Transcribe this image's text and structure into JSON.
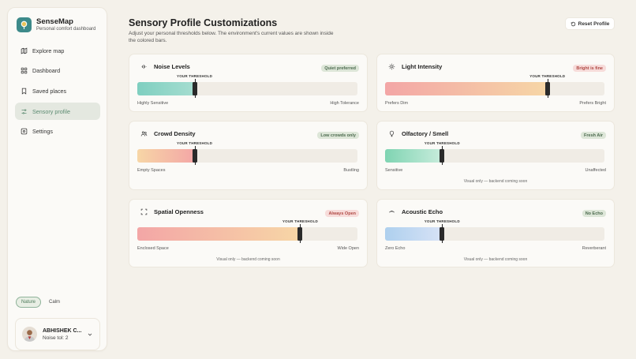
{
  "app": {
    "name": "SenseMap",
    "subtitle": "Personal comfort dashboard"
  },
  "sidebar": {
    "items": [
      {
        "label": "Explore map",
        "icon": "map-icon",
        "active": false
      },
      {
        "label": "Dashboard",
        "icon": "grid-icon",
        "active": false
      },
      {
        "label": "Saved places",
        "icon": "bookmark-icon",
        "active": false
      },
      {
        "label": "Sensory profile",
        "icon": "sliders-icon",
        "active": true
      },
      {
        "label": "Settings",
        "icon": "settings-icon",
        "active": false
      }
    ],
    "modes": [
      {
        "label": "Nature",
        "active": true
      },
      {
        "label": "Calm",
        "active": false
      }
    ],
    "user": {
      "name": "ABHISHEK C...",
      "detail": "Noise tol: 2"
    }
  },
  "header": {
    "title": "Sensory Profile Customizations",
    "subtitle": "Adjust your personal thresholds below. The environment's current values are shown inside the colored bars.",
    "reset_label": "Reset Profile"
  },
  "threshold_label": "YOUR THRESHOLD",
  "cards": [
    {
      "title": "Noise Levels",
      "icon": "audio-waves-icon",
      "badge": "Quiet preferred",
      "badge_tone": "green",
      "left_label": "Highly Sensitive",
      "right_label": "High Tolerance",
      "fill_level": 0.26,
      "threshold": 0.26,
      "fill_colors": [
        "#7fcfc0",
        "#a5ddd0"
      ],
      "note": ""
    },
    {
      "title": "Light Intensity",
      "icon": "sun-icon",
      "badge": "Bright is fine",
      "badge_tone": "red",
      "left_label": "Prefers Dim",
      "right_label": "Prefers Bright",
      "fill_level": 0.74,
      "threshold": 0.74,
      "fill_colors": [
        "#f3a6a6",
        "#f6d6a6"
      ],
      "note": ""
    },
    {
      "title": "Crowd Density",
      "icon": "users-icon",
      "badge": "Low crowds only",
      "badge_tone": "green",
      "left_label": "Empty Spaces",
      "right_label": "Bustling",
      "fill_level": 0.26,
      "threshold": 0.26,
      "fill_colors": [
        "#f7d6a6",
        "#f3a6a6"
      ],
      "note": ""
    },
    {
      "title": "Olfactory / Smell",
      "icon": "scent-icon",
      "badge": "Fresh Air",
      "badge_tone": "green",
      "left_label": "Sensitive",
      "right_label": "Unaffected",
      "fill_level": 0.26,
      "threshold": 0.26,
      "fill_colors": [
        "#7fd4b2",
        "#c8ecdc"
      ],
      "note": "Visual only — backend coming soon"
    },
    {
      "title": "Spatial Openness",
      "icon": "expand-icon",
      "badge": "Always Open",
      "badge_tone": "red",
      "left_label": "Enclosed Space",
      "right_label": "Wide Open",
      "fill_level": 0.74,
      "threshold": 0.74,
      "fill_colors": [
        "#f3a6a6",
        "#f7d6a6"
      ],
      "note": "Visual only — backend coming soon"
    },
    {
      "title": "Acoustic Echo",
      "icon": "echo-icon",
      "badge": "No Echo",
      "badge_tone": "green",
      "left_label": "Zero Echo",
      "right_label": "Reverberant",
      "fill_level": 0.26,
      "threshold": 0.26,
      "fill_colors": [
        "#aed0ee",
        "#d7e2f6"
      ],
      "note": "Visual only — backend coming soon"
    }
  ]
}
